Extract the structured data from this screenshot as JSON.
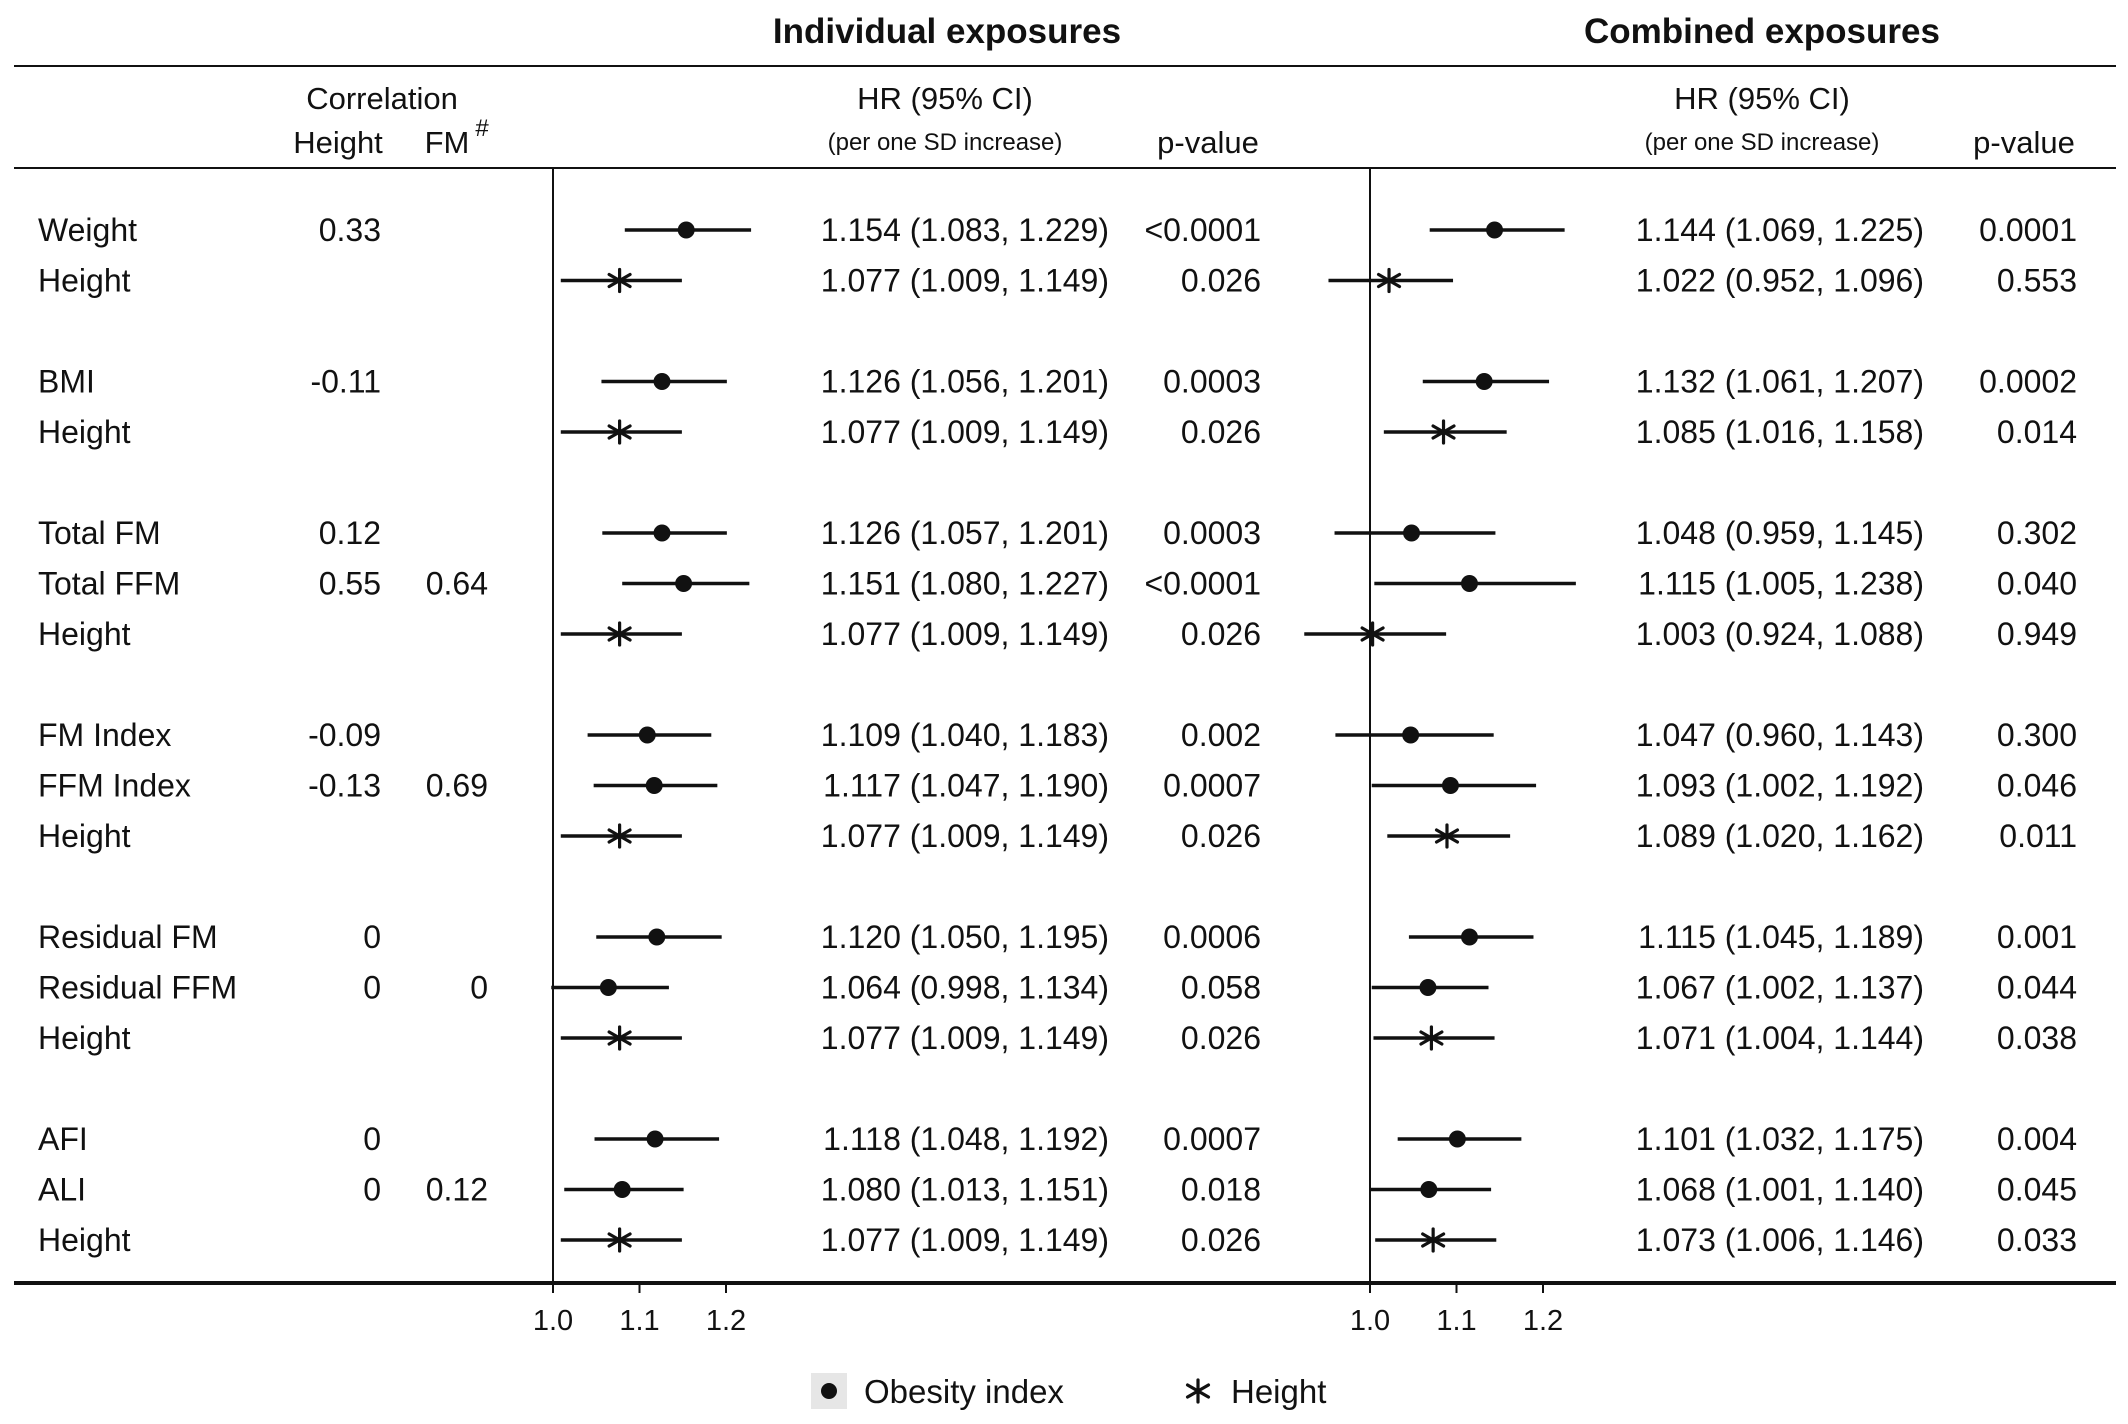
{
  "headers": {
    "individual": "Individual exposures",
    "combined": "Combined exposures",
    "correlation": "Correlation",
    "corr_height": "Height",
    "corr_fm": "FM",
    "corr_fm_mark": "#",
    "hr": "HR (95% CI)",
    "hr_sub": "(per one SD increase)",
    "pvalue": "p-value"
  },
  "axis": {
    "ticks": [
      1.0,
      1.1,
      1.2
    ],
    "tick_labels": [
      "1.0",
      "1.1",
      "1.2"
    ],
    "reference": 1.0
  },
  "legend": [
    {
      "label": "Obesity index",
      "marker": "dot"
    },
    {
      "label": "Height",
      "marker": "asterisk"
    }
  ],
  "chart_data": {
    "type": "forest",
    "groups": [
      {
        "rows": [
          {
            "label": "Weight",
            "marker": "dot",
            "corr_height": "0.33",
            "corr_fm": "",
            "ind": {
              "hr": 1.154,
              "lo": 1.083,
              "hi": 1.229,
              "text": "1.154 (1.083, 1.229)",
              "p": "<0.0001"
            },
            "comb": {
              "hr": 1.144,
              "lo": 1.069,
              "hi": 1.225,
              "text": "1.144 (1.069, 1.225)",
              "p": "0.0001"
            }
          },
          {
            "label": "Height",
            "marker": "asterisk",
            "corr_height": "",
            "corr_fm": "",
            "ind": {
              "hr": 1.077,
              "lo": 1.009,
              "hi": 1.149,
              "text": "1.077 (1.009, 1.149)",
              "p": "0.026"
            },
            "comb": {
              "hr": 1.022,
              "lo": 0.952,
              "hi": 1.096,
              "text": "1.022 (0.952, 1.096)",
              "p": "0.553"
            }
          }
        ]
      },
      {
        "rows": [
          {
            "label": "BMI",
            "marker": "dot",
            "corr_height": "-0.11",
            "corr_fm": "",
            "ind": {
              "hr": 1.126,
              "lo": 1.056,
              "hi": 1.201,
              "text": "1.126 (1.056, 1.201)",
              "p": "0.0003"
            },
            "comb": {
              "hr": 1.132,
              "lo": 1.061,
              "hi": 1.207,
              "text": "1.132 (1.061, 1.207)",
              "p": "0.0002"
            }
          },
          {
            "label": "Height",
            "marker": "asterisk",
            "corr_height": "",
            "corr_fm": "",
            "ind": {
              "hr": 1.077,
              "lo": 1.009,
              "hi": 1.149,
              "text": "1.077 (1.009, 1.149)",
              "p": "0.026"
            },
            "comb": {
              "hr": 1.085,
              "lo": 1.016,
              "hi": 1.158,
              "text": "1.085 (1.016, 1.158)",
              "p": "0.014"
            }
          }
        ]
      },
      {
        "rows": [
          {
            "label": "Total FM",
            "marker": "dot",
            "corr_height": "0.12",
            "corr_fm": "",
            "ind": {
              "hr": 1.126,
              "lo": 1.057,
              "hi": 1.201,
              "text": "1.126 (1.057, 1.201)",
              "p": "0.0003"
            },
            "comb": {
              "hr": 1.048,
              "lo": 0.959,
              "hi": 1.145,
              "text": "1.048 (0.959, 1.145)",
              "p": "0.302"
            }
          },
          {
            "label": "Total FFM",
            "marker": "dot",
            "corr_height": "0.55",
            "corr_fm": "0.64",
            "ind": {
              "hr": 1.151,
              "lo": 1.08,
              "hi": 1.227,
              "text": "1.151 (1.080, 1.227)",
              "p": "<0.0001"
            },
            "comb": {
              "hr": 1.115,
              "lo": 1.005,
              "hi": 1.238,
              "text": "1.115 (1.005, 1.238)",
              "p": "0.040"
            }
          },
          {
            "label": "Height",
            "marker": "asterisk",
            "corr_height": "",
            "corr_fm": "",
            "ind": {
              "hr": 1.077,
              "lo": 1.009,
              "hi": 1.149,
              "text": "1.077 (1.009, 1.149)",
              "p": "0.026"
            },
            "comb": {
              "hr": 1.003,
              "lo": 0.924,
              "hi": 1.088,
              "text": "1.003 (0.924, 1.088)",
              "p": "0.949"
            }
          }
        ]
      },
      {
        "rows": [
          {
            "label": "FM Index",
            "marker": "dot",
            "corr_height": "-0.09",
            "corr_fm": "",
            "ind": {
              "hr": 1.109,
              "lo": 1.04,
              "hi": 1.183,
              "text": "1.109 (1.040, 1.183)",
              "p": "0.002"
            },
            "comb": {
              "hr": 1.047,
              "lo": 0.96,
              "hi": 1.143,
              "text": "1.047 (0.960, 1.143)",
              "p": "0.300"
            }
          },
          {
            "label": "FFM Index",
            "marker": "dot",
            "corr_height": "-0.13",
            "corr_fm": "0.69",
            "ind": {
              "hr": 1.117,
              "lo": 1.047,
              "hi": 1.19,
              "text": "1.117 (1.047, 1.190)",
              "p": "0.0007"
            },
            "comb": {
              "hr": 1.093,
              "lo": 1.002,
              "hi": 1.192,
              "text": "1.093 (1.002, 1.192)",
              "p": "0.046"
            }
          },
          {
            "label": "Height",
            "marker": "asterisk",
            "corr_height": "",
            "corr_fm": "",
            "ind": {
              "hr": 1.077,
              "lo": 1.009,
              "hi": 1.149,
              "text": "1.077 (1.009, 1.149)",
              "p": "0.026"
            },
            "comb": {
              "hr": 1.089,
              "lo": 1.02,
              "hi": 1.162,
              "text": "1.089 (1.020, 1.162)",
              "p": "0.011"
            }
          }
        ]
      },
      {
        "rows": [
          {
            "label": "Residual FM",
            "marker": "dot",
            "corr_height": "0",
            "corr_fm": "",
            "ind": {
              "hr": 1.12,
              "lo": 1.05,
              "hi": 1.195,
              "text": "1.120 (1.050, 1.195)",
              "p": "0.0006"
            },
            "comb": {
              "hr": 1.115,
              "lo": 1.045,
              "hi": 1.189,
              "text": "1.115 (1.045, 1.189)",
              "p": "0.001"
            }
          },
          {
            "label": "Residual FFM",
            "marker": "dot",
            "corr_height": "0",
            "corr_fm": "0",
            "ind": {
              "hr": 1.064,
              "lo": 0.998,
              "hi": 1.134,
              "text": "1.064 (0.998, 1.134)",
              "p": "0.058"
            },
            "comb": {
              "hr": 1.067,
              "lo": 1.002,
              "hi": 1.137,
              "text": "1.067 (1.002, 1.137)",
              "p": "0.044"
            }
          },
          {
            "label": "Height",
            "marker": "asterisk",
            "corr_height": "",
            "corr_fm": "",
            "ind": {
              "hr": 1.077,
              "lo": 1.009,
              "hi": 1.149,
              "text": "1.077 (1.009, 1.149)",
              "p": "0.026"
            },
            "comb": {
              "hr": 1.071,
              "lo": 1.004,
              "hi": 1.144,
              "text": "1.071 (1.004, 1.144)",
              "p": "0.038"
            }
          }
        ]
      },
      {
        "rows": [
          {
            "label": "AFI",
            "marker": "dot",
            "corr_height": "0",
            "corr_fm": "",
            "ind": {
              "hr": 1.118,
              "lo": 1.048,
              "hi": 1.192,
              "text": "1.118 (1.048, 1.192)",
              "p": "0.0007"
            },
            "comb": {
              "hr": 1.101,
              "lo": 1.032,
              "hi": 1.175,
              "text": "1.101 (1.032, 1.175)",
              "p": "0.004"
            }
          },
          {
            "label": "ALI",
            "marker": "dot",
            "corr_height": "0",
            "corr_fm": "0.12",
            "ind": {
              "hr": 1.08,
              "lo": 1.013,
              "hi": 1.151,
              "text": "1.080 (1.013, 1.151)",
              "p": "0.018"
            },
            "comb": {
              "hr": 1.068,
              "lo": 1.001,
              "hi": 1.14,
              "text": "1.068 (1.001, 1.140)",
              "p": "0.045"
            }
          },
          {
            "label": "Height",
            "marker": "asterisk",
            "corr_height": "",
            "corr_fm": "",
            "ind": {
              "hr": 1.077,
              "lo": 1.009,
              "hi": 1.149,
              "text": "1.077 (1.009, 1.149)",
              "p": "0.026"
            },
            "comb": {
              "hr": 1.073,
              "lo": 1.006,
              "hi": 1.146,
              "text": "1.073 (1.006, 1.146)",
              "p": "0.033"
            }
          }
        ]
      }
    ]
  }
}
